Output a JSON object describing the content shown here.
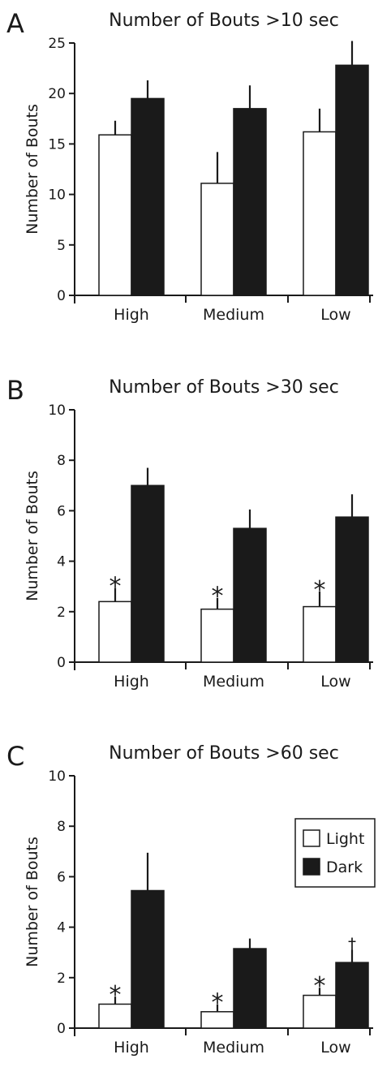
{
  "chart_data": [
    {
      "panel_label": "A",
      "type": "bar",
      "title": "Number of Bouts >10 sec",
      "ylabel": "Number of Bouts",
      "xlabel": "",
      "categories": [
        "High",
        "Medium",
        "Low"
      ],
      "ylim": [
        0,
        25
      ],
      "yticks": [
        0,
        5,
        10,
        15,
        20,
        25
      ],
      "series": [
        {
          "name": "Light",
          "color": "#ffffff",
          "values": [
            15.9,
            11.1,
            16.2
          ],
          "errors": [
            1.4,
            3.1,
            2.3
          ],
          "annotations": [
            "",
            "",
            ""
          ]
        },
        {
          "name": "Dark",
          "color": "#1a1a1a",
          "values": [
            19.5,
            18.5,
            22.8
          ],
          "errors": [
            1.8,
            2.3,
            2.4
          ],
          "annotations": [
            "",
            "",
            ""
          ]
        }
      ],
      "show_legend": false
    },
    {
      "panel_label": "B",
      "type": "bar",
      "title": "Number of Bouts >30 sec",
      "ylabel": "Number of Bouts",
      "xlabel": "",
      "categories": [
        "High",
        "Medium",
        "Low"
      ],
      "ylim": [
        0,
        10
      ],
      "yticks": [
        0,
        2,
        4,
        6,
        8,
        10
      ],
      "series": [
        {
          "name": "Light",
          "color": "#ffffff",
          "values": [
            2.4,
            2.1,
            2.2
          ],
          "errors": [
            0.55,
            0.45,
            0.6
          ],
          "annotations": [
            "*",
            "*",
            "*"
          ]
        },
        {
          "name": "Dark",
          "color": "#1a1a1a",
          "values": [
            7.0,
            5.3,
            5.75
          ],
          "errors": [
            0.7,
            0.75,
            0.9
          ],
          "annotations": [
            "",
            "",
            ""
          ]
        }
      ],
      "show_legend": false
    },
    {
      "panel_label": "C",
      "type": "bar",
      "title": "Number of Bouts >60 sec",
      "ylabel": "Number of Bouts",
      "xlabel": "",
      "categories": [
        "High",
        "Medium",
        "Low"
      ],
      "ylim": [
        0,
        10
      ],
      "yticks": [
        0,
        2,
        4,
        6,
        8,
        10
      ],
      "series": [
        {
          "name": "Light",
          "color": "#ffffff",
          "values": [
            0.95,
            0.65,
            1.3
          ],
          "errors": [
            0.3,
            0.3,
            0.3
          ],
          "annotations": [
            "*",
            "*",
            "*"
          ]
        },
        {
          "name": "Dark",
          "color": "#1a1a1a",
          "values": [
            5.45,
            3.15,
            2.6
          ],
          "errors": [
            1.5,
            0.4,
            0.5
          ],
          "annotations": [
            "",
            "",
            "†"
          ]
        }
      ],
      "show_legend": true,
      "legend_position": "top-right"
    }
  ]
}
